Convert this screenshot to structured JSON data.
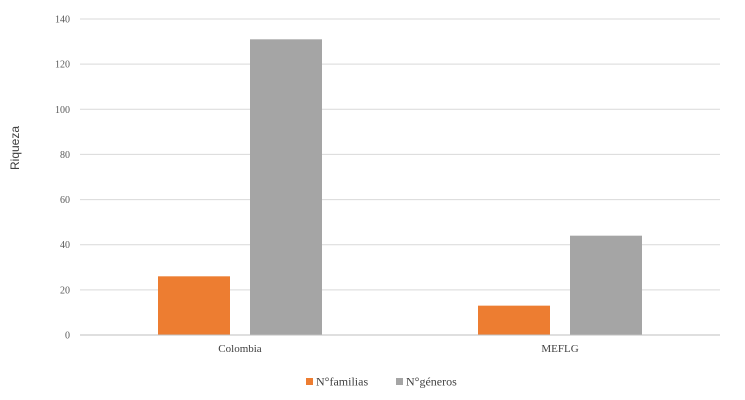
{
  "chart_data": {
    "type": "bar",
    "categories": [
      "Colombia",
      "MEFLG"
    ],
    "series": [
      {
        "name": "N°familias",
        "values": [
          26,
          13
        ],
        "color": "#ED7D31"
      },
      {
        "name": "N°géneros",
        "values": [
          131,
          44
        ],
        "color": "#A5A5A5"
      }
    ],
    "ylabel": "Riqueza",
    "ylim": [
      0,
      140
    ],
    "yticks": [
      0,
      20,
      40,
      60,
      80,
      100,
      120,
      140
    ],
    "grid": true,
    "legend_position": "bottom"
  }
}
